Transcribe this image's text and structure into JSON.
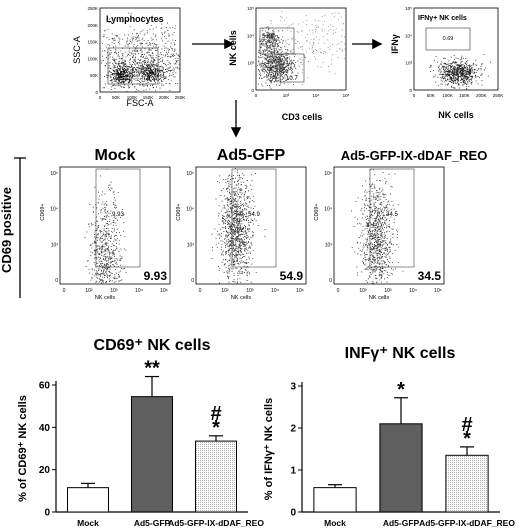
{
  "gating": [
    {
      "key": "g1",
      "gate_label": "Lymphocytes",
      "gate_value": "",
      "xlabel": "FSC-A",
      "ylabel": "SSC-A",
      "xticks": [
        "0",
        "50K",
        "100K",
        "150K",
        "200K",
        "250K"
      ],
      "yticks": [
        "0",
        "50K",
        "100K",
        "150K",
        "200K",
        "250K"
      ]
    },
    {
      "key": "g2",
      "gate_label": "",
      "gate_value": "",
      "quadrant_values": [
        "5.86",
        "10.7"
      ],
      "xlabel": "CD3 cells",
      "ylabel": "NK cells",
      "xticks": [
        "0",
        "10³",
        "10⁴",
        "10⁵"
      ],
      "yticks": [
        "0",
        "10³",
        "10⁴",
        "10⁵"
      ]
    },
    {
      "key": "g3",
      "gate_label": "IFNγ+ NK cells",
      "gate_value": "0.69",
      "xlabel": "NK cells",
      "ylabel": "IFNγ",
      "xticks": [
        "0",
        "50K",
        "100K",
        "150K",
        "200K",
        "250K"
      ],
      "yticks": [
        "0",
        "10³",
        "10⁴",
        "10⁵"
      ]
    }
  ],
  "side_label": "CD69 positive",
  "cd69_panels": [
    {
      "title": "Mock",
      "gate_value": "9.93",
      "big_value": "9.93"
    },
    {
      "title": "Ad5-GFP",
      "gate_value": "54.9",
      "big_value": "54.9"
    },
    {
      "title": "Ad5-GFP-IX-dDAF_REO",
      "gate_value": "34.5",
      "big_value": "34.5"
    }
  ],
  "cd69_axes": {
    "xlabel": "NK cells",
    "ylabel": "CD69+",
    "xticks": [
      "0",
      "10²",
      "10³",
      "10⁴",
      "10⁵"
    ],
    "yticks": [
      "0",
      "10³",
      "10⁴",
      "10⁵"
    ]
  },
  "chart_data": [
    {
      "type": "bar",
      "title": "CD69⁺ NK cells",
      "ylabel": "% of CD69⁺ NK cells",
      "ylim": [
        0,
        60
      ],
      "yticks": [
        "0",
        "20",
        "40",
        "60"
      ],
      "categories": [
        "Mock",
        "Ad5-GFP",
        "Ad5-GFP-IX-dDAF_REO"
      ],
      "values": [
        11.5,
        54.5,
        33.5
      ],
      "errors": [
        2,
        9.5,
        2.5
      ],
      "annotations": [
        "",
        "**",
        "#\n*"
      ],
      "colors": [
        "#ffffff",
        "#5f5f5f",
        "#dcdcdc"
      ]
    },
    {
      "type": "bar",
      "title": "INFγ⁺ NK cells",
      "ylabel": "% of IFNγ⁺ NK cells",
      "ylim": [
        0,
        3
      ],
      "yticks": [
        "0",
        "1",
        "2",
        "3"
      ],
      "categories": [
        "Mock",
        "Ad5-GFP",
        "Ad5-GFP-IX-dDAF_REO"
      ],
      "values": [
        0.58,
        2.1,
        1.35
      ],
      "errors": [
        0.07,
        0.62,
        0.2
      ],
      "annotations": [
        "",
        "*",
        "#\n*"
      ],
      "colors": [
        "#ffffff",
        "#5f5f5f",
        "#dcdcdc"
      ]
    }
  ]
}
